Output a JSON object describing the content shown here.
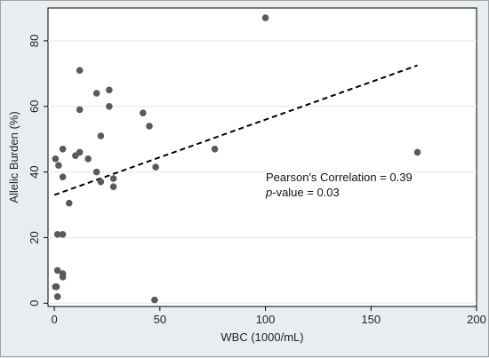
{
  "chart_data": {
    "type": "scatter",
    "title": "",
    "xlabel": "WBC (1000/mL)",
    "ylabel": "Allelic Burden (%)",
    "xlim": [
      -3,
      200
    ],
    "ylim": [
      -1,
      90
    ],
    "xticks": [
      0,
      50,
      100,
      150,
      200
    ],
    "yticks": [
      0,
      20,
      40,
      60,
      80
    ],
    "grid": true,
    "legend": "none",
    "marker_color": "#5a5a5a",
    "fit_line": {
      "style": "dashed",
      "color": "#000000",
      "points": [
        [
          0,
          33
        ],
        [
          172,
          72.5
        ]
      ]
    },
    "annotations": {
      "line1": "Pearson's Correlation = 0.39",
      "line2_italic": "p",
      "line2_rest": "-value = 0.03"
    },
    "points": [
      [
        100,
        87
      ],
      [
        12,
        71
      ],
      [
        26,
        65
      ],
      [
        20,
        64
      ],
      [
        26,
        60
      ],
      [
        12,
        59
      ],
      [
        42,
        58
      ],
      [
        45,
        54
      ],
      [
        22,
        51
      ],
      [
        4,
        47
      ],
      [
        12,
        46
      ],
      [
        10,
        45
      ],
      [
        0.5,
        44
      ],
      [
        16,
        44
      ],
      [
        2,
        42
      ],
      [
        48,
        41.5
      ],
      [
        20,
        40
      ],
      [
        4,
        38.5
      ],
      [
        28,
        38
      ],
      [
        22,
        37
      ],
      [
        28,
        35.5
      ],
      [
        7,
        30.5
      ],
      [
        1.5,
        21
      ],
      [
        4,
        21
      ],
      [
        1.5,
        10
      ],
      [
        4,
        9
      ],
      [
        4,
        8
      ],
      [
        0.5,
        5
      ],
      [
        1,
        5
      ],
      [
        1.5,
        2
      ],
      [
        47.5,
        1
      ],
      [
        76,
        47
      ],
      [
        172,
        46
      ]
    ]
  }
}
